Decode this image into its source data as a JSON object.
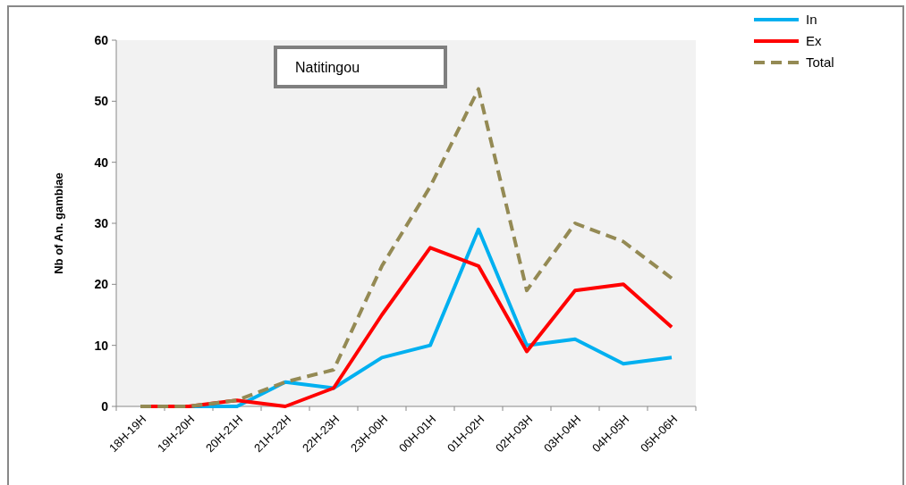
{
  "chart_data": {
    "type": "line",
    "ylabel": "Nb of An. gambiae",
    "categories": [
      "18H-19H",
      "19H-20H",
      "20H-21H",
      "21H-22H",
      "22H-23H",
      "23H-00H",
      "00H-01H",
      "01H-02H",
      "02H-03H",
      "03H-04H",
      "04H-05H",
      "05H-06H"
    ],
    "series": [
      {
        "name": "In",
        "color": "#00b0f0",
        "values": [
          0,
          0,
          0,
          4,
          3,
          8,
          10,
          29,
          10,
          11,
          7,
          8
        ]
      },
      {
        "name": "Ex",
        "color": "#ff0000",
        "values": [
          0,
          0,
          1,
          0,
          3,
          15,
          26,
          23,
          9,
          19,
          20,
          13
        ]
      },
      {
        "name": "Total",
        "color": "#948a54",
        "line_style": "dashed",
        "values": [
          0,
          0,
          1,
          4,
          6,
          23,
          36,
          52,
          19,
          30,
          27,
          21
        ]
      }
    ],
    "annotations": [
      "Natitingou"
    ],
    "ylim": [
      0,
      60
    ],
    "yticks": [
      0,
      10,
      20,
      30,
      40,
      50,
      60
    ],
    "grid": false,
    "legend": "top right",
    "marker": "none"
  }
}
